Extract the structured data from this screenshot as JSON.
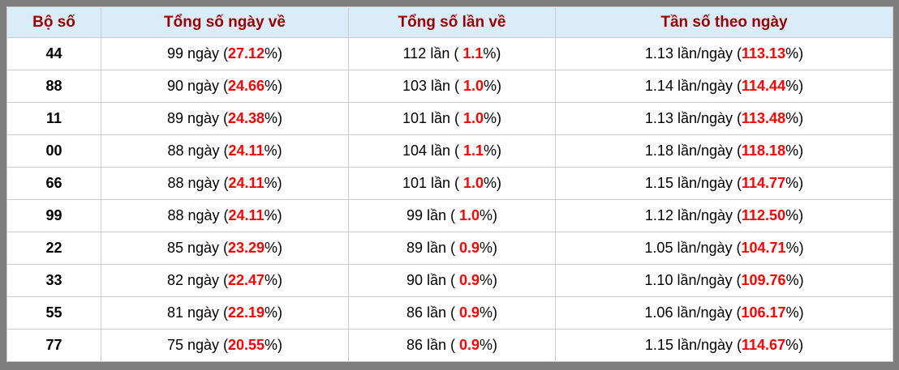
{
  "colors": {
    "frame": "#7f7f7f",
    "header_bg": "#d9ecf7",
    "header_text": "#9b0000",
    "cell_border": "#cccccc",
    "highlight_red": "#ff0000",
    "body_text": "#000000"
  },
  "table": {
    "headers": [
      "Bộ số",
      "Tổng số ngày về",
      "Tổng số lần về",
      "Tần số theo ngày"
    ],
    "rows": [
      {
        "bo_so": "44",
        "ngay": {
          "pre": "99 ngày (",
          "em": "27.12",
          "post": "%)"
        },
        "lan": {
          "pre": "112 lần ( ",
          "em": "1.1",
          "post": "%)"
        },
        "tan_so": {
          "pre": "1.13 lần/ngày (",
          "em": "113.13",
          "post": "%)"
        }
      },
      {
        "bo_so": "88",
        "ngay": {
          "pre": "90 ngày (",
          "em": "24.66",
          "post": "%)"
        },
        "lan": {
          "pre": "103 lần ( ",
          "em": "1.0",
          "post": "%)"
        },
        "tan_so": {
          "pre": "1.14 lần/ngày (",
          "em": "114.44",
          "post": "%)"
        }
      },
      {
        "bo_so": "11",
        "ngay": {
          "pre": "89 ngày (",
          "em": "24.38",
          "post": "%)"
        },
        "lan": {
          "pre": "101 lần ( ",
          "em": "1.0",
          "post": "%)"
        },
        "tan_so": {
          "pre": "1.13 lần/ngày (",
          "em": "113.48",
          "post": "%)"
        }
      },
      {
        "bo_so": "00",
        "ngay": {
          "pre": "88 ngày (",
          "em": "24.11",
          "post": "%)"
        },
        "lan": {
          "pre": "104 lần ( ",
          "em": "1.1",
          "post": "%)"
        },
        "tan_so": {
          "pre": "1.18 lần/ngày (",
          "em": "118.18",
          "post": "%)"
        }
      },
      {
        "bo_so": "66",
        "ngay": {
          "pre": "88 ngày (",
          "em": "24.11",
          "post": "%)"
        },
        "lan": {
          "pre": "101 lần ( ",
          "em": "1.0",
          "post": "%)"
        },
        "tan_so": {
          "pre": "1.15 lần/ngày (",
          "em": "114.77",
          "post": "%)"
        }
      },
      {
        "bo_so": "99",
        "ngay": {
          "pre": "88 ngày (",
          "em": "24.11",
          "post": "%)"
        },
        "lan": {
          "pre": "99 lần ( ",
          "em": "1.0",
          "post": "%)"
        },
        "tan_so": {
          "pre": "1.12 lần/ngày (",
          "em": "112.50",
          "post": "%)"
        }
      },
      {
        "bo_so": "22",
        "ngay": {
          "pre": "85 ngày (",
          "em": "23.29",
          "post": "%)"
        },
        "lan": {
          "pre": "89 lần ( ",
          "em": "0.9",
          "post": "%)"
        },
        "tan_so": {
          "pre": "1.05 lần/ngày (",
          "em": "104.71",
          "post": "%)"
        }
      },
      {
        "bo_so": "33",
        "ngay": {
          "pre": "82 ngày (",
          "em": "22.47",
          "post": "%)"
        },
        "lan": {
          "pre": "90 lần ( ",
          "em": "0.9",
          "post": "%)"
        },
        "tan_so": {
          "pre": "1.10 lần/ngày (",
          "em": "109.76",
          "post": "%)"
        }
      },
      {
        "bo_so": "55",
        "ngay": {
          "pre": "81 ngày (",
          "em": "22.19",
          "post": "%)"
        },
        "lan": {
          "pre": "86 lần ( ",
          "em": "0.9",
          "post": "%)"
        },
        "tan_so": {
          "pre": "1.06 lần/ngày (",
          "em": "106.17",
          "post": "%)"
        }
      },
      {
        "bo_so": "77",
        "ngay": {
          "pre": "75 ngày (",
          "em": "20.55",
          "post": "%)"
        },
        "lan": {
          "pre": "86 lần ( ",
          "em": "0.9",
          "post": "%)"
        },
        "tan_so": {
          "pre": "1.15 lần/ngày (",
          "em": "114.67",
          "post": "%)"
        }
      }
    ]
  }
}
